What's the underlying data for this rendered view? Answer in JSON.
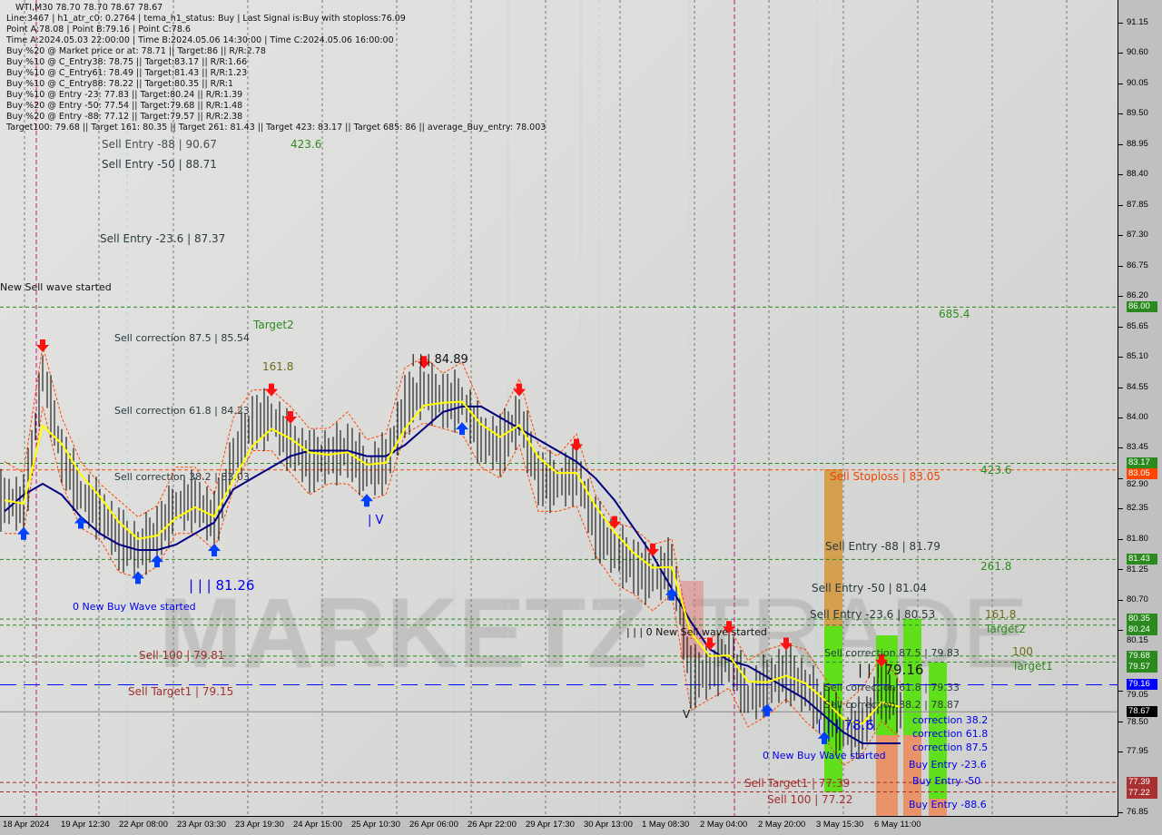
{
  "header": {
    "symbol_line": "WTI,M30  78.70 78.70 78.67 78.67",
    "lines": [
      "Line:3467 | h1_atr_c0: 0.2764 | tema_h1_status: Buy | Last Signal is:Buy with stoploss:76.09",
      "Point A:78.08 | Point B:79.16 | Point C:78.6",
      "Time A:2024.05.03 22:00:00 | Time B:2024.05.06 14:30:00 | Time C:2024.05.06 16:00:00",
      "Buy %20 @ Market price or at: 78.71 || Target:86 || R/R:2.78",
      "Buy %10 @ C_Entry38: 78.75 || Target:83.17 || R/R:1.66",
      "Buy %10 @ C_Entry61: 78.49 || Target:81.43 || R/R:1.23",
      "Buy %10 @ C_Entry88: 78.22 || Target:80.35 || R/R:1",
      "Buy %10 @ Entry -23: 77.83 || Target:80.24 || R/R:1.39",
      "Buy %20 @ Entry -50: 77.54 || Target:79.68 || R/R:1.48",
      "Buy %20 @ Entry -88: 77.12 || Target:79.57 || R/R:2.38",
      "Target100: 79.68 || Target 161: 80.35 || Target 261: 81.43 || Target 423: 83.17 || Target 685: 86 || average_Buy_entry: 78.003"
    ]
  },
  "watermark": {
    "left": "MARKETZ",
    "right": "TRADE"
  },
  "annotations": {
    "a1": "423.6",
    "a2": "Sell Entry -88 | 90.67",
    "a3": "Sell Entry -50 | 88.71",
    "a4": "Sell Entry -23.6 | 87.37",
    "a5": "New Sell wave started",
    "a6": "Target2",
    "a7": "Sell correction 87.5 | 85.54",
    "a8": "161.8",
    "a9": "| | | 84.89",
    "a10": "Sell correction 61.8 | 84.23",
    "a11": "Sell correction 38.2 | 83.03",
    "a12": "| V",
    "a13": "| | | 81.26",
    "a14": "0 New Buy Wave started",
    "a15": "Sell 100 | 79.81",
    "a16": "Sell Target1 | 79.15",
    "a17": "685.4",
    "a18": "423.6",
    "a19": "Sell Stoploss | 83.05",
    "a20": "Sell Entry -88 | 81.79",
    "a21": "261.8",
    "a22": "Sell Entry -50 | 81.04",
    "a23": "Sell Entry -23.6 | 80.53",
    "a24": "161.8",
    "a25": "Target2",
    "a26": "| | |   0 New Sell wave started",
    "a27": "Sell correction 87.5 | 79.83",
    "a28": "100",
    "a29": "Target1",
    "a30": "Sell correction 61.8 | 79.33",
    "a31": "| | | 79.16",
    "a32": "Sell correction 38.2 | 78.87",
    "a33": "correction 38.2",
    "a34": "| | | 78.6",
    "a35": "correction 61.8",
    "a36": "correction 87.5",
    "a37": "0 New Buy Wave started",
    "a38": "Buy Entry -23.6",
    "a39": "Buy Entry -50",
    "a40": "Sell Target1 | 77.39",
    "a41": "Sell 100 | 77.22",
    "a42": "Buy Entry -88.6",
    "a43": "V"
  },
  "chart_data": {
    "type": "bar",
    "title": "WTI,M30",
    "ylim": [
      76.85,
      91.15
    ],
    "y_ticks": [
      "91.15",
      "90.60",
      "90.05",
      "89.50",
      "88.95",
      "88.40",
      "87.85",
      "87.30",
      "86.75",
      "86.20",
      "85.65",
      "85.10",
      "84.55",
      "84.00",
      "83.45",
      "82.90",
      "82.35",
      "81.80",
      "81.25",
      "80.70",
      "80.15",
      "79.05",
      "78.50",
      "77.95",
      "76.85"
    ],
    "x_ticks": [
      "18 Apr 2024",
      "19 Apr 12:30",
      "22 Apr 08:00",
      "23 Apr 03:30",
      "23 Apr 19:30",
      "24 Apr 15:00",
      "25 Apr 10:30",
      "26 Apr 06:00",
      "26 Apr 22:00",
      "29 Apr 17:30",
      "30 Apr 13:00",
      "1 May 08:30",
      "2 May 04:00",
      "2 May 20:00",
      "3 May 15:30",
      "6 May 11:00"
    ],
    "close": [
      82.5,
      82.4,
      84.8,
      83.3,
      82.6,
      82.3,
      81.8,
      81.6,
      81.9,
      82.4,
      82.5,
      82.1,
      83.3,
      83.9,
      84.0,
      83.5,
      83.2,
      83.3,
      83.4,
      83.0,
      83.2,
      84.2,
      84.5,
      84.3,
      84.3,
      83.6,
      83.5,
      84.0,
      82.9,
      82.8,
      83.0,
      82.0,
      81.6,
      81.3,
      81.1,
      81.3,
      79.3,
      79.4,
      79.7,
      78.9,
      79.2,
      79.4,
      79.1,
      78.7,
      78.3,
      78.4,
      79.1,
      78.7
    ],
    "moving_average": [
      82.3,
      82.6,
      82.8,
      82.6,
      82.2,
      81.9,
      81.7,
      81.6,
      81.6,
      81.7,
      81.9,
      82.1,
      82.7,
      82.9,
      83.1,
      83.3,
      83.4,
      83.4,
      83.4,
      83.3,
      83.3,
      83.5,
      83.8,
      84.1,
      84.2,
      84.2,
      84.0,
      83.8,
      83.6,
      83.4,
      83.2,
      82.9,
      82.5,
      82.0,
      81.5,
      80.9,
      80.3,
      79.8,
      79.6,
      79.5,
      79.3,
      79.1,
      78.9,
      78.6,
      78.3,
      78.1,
      78.1,
      78.1
    ],
    "signals": [
      {
        "i": 1,
        "type": "buy"
      },
      {
        "i": 2,
        "type": "sell"
      },
      {
        "i": 4,
        "type": "buy"
      },
      {
        "i": 7,
        "type": "buy"
      },
      {
        "i": 8,
        "type": "buy"
      },
      {
        "i": 11,
        "type": "buy"
      },
      {
        "i": 14,
        "type": "sell"
      },
      {
        "i": 15,
        "type": "sell"
      },
      {
        "i": 19,
        "type": "buy"
      },
      {
        "i": 22,
        "type": "sell"
      },
      {
        "i": 24,
        "type": "buy"
      },
      {
        "i": 27,
        "type": "sell"
      },
      {
        "i": 30,
        "type": "sell"
      },
      {
        "i": 32,
        "type": "sell"
      },
      {
        "i": 34,
        "type": "sell"
      },
      {
        "i": 35,
        "type": "buy"
      },
      {
        "i": 37,
        "type": "sell"
      },
      {
        "i": 38,
        "type": "sell"
      },
      {
        "i": 40,
        "type": "buy"
      },
      {
        "i": 41,
        "type": "sell"
      },
      {
        "i": 43,
        "type": "buy"
      },
      {
        "i": 46,
        "type": "sell"
      }
    ],
    "levels": [
      {
        "price": 86.0,
        "tag": "86.00",
        "color": "#2a8a1e",
        "style": "dash"
      },
      {
        "price": 83.17,
        "tag": "83.17",
        "color": "#2a8a1e",
        "style": "dash"
      },
      {
        "price": 83.05,
        "tag": "83.05",
        "color": "#ff4500",
        "style": "dash"
      },
      {
        "price": 81.43,
        "tag": "81.43",
        "color": "#2a8a1e",
        "style": "dash"
      },
      {
        "price": 80.35,
        "tag": "80.35",
        "color": "#2a8a1e",
        "style": "dash"
      },
      {
        "price": 80.24,
        "tag": "80.24",
        "color": "#2a8a1e",
        "style": "dash"
      },
      {
        "price": 79.68,
        "tag": "79.68",
        "color": "#2a8a1e",
        "style": "dash"
      },
      {
        "price": 79.57,
        "tag": "79.57",
        "color": "#2a8a1e",
        "style": "dash"
      },
      {
        "price": 79.16,
        "tag": "79.16",
        "color": "#0000ff",
        "style": "longdash"
      },
      {
        "price": 78.67,
        "tag": "78.67",
        "color": "#000000",
        "style": "solid"
      },
      {
        "price": 77.39,
        "tag": "77.39",
        "color": "#a52a2a",
        "style": "dash"
      },
      {
        "price": 77.22,
        "tag": "77.22",
        "color": "#a52a2a",
        "style": "dash"
      }
    ],
    "colors": {
      "bars": "#000000",
      "ma": "#000080",
      "fast_line": "#ffff00",
      "envelope": "#ff4500",
      "buy_arrow": "#0040ff",
      "sell_arrow": "#ff1010"
    }
  }
}
